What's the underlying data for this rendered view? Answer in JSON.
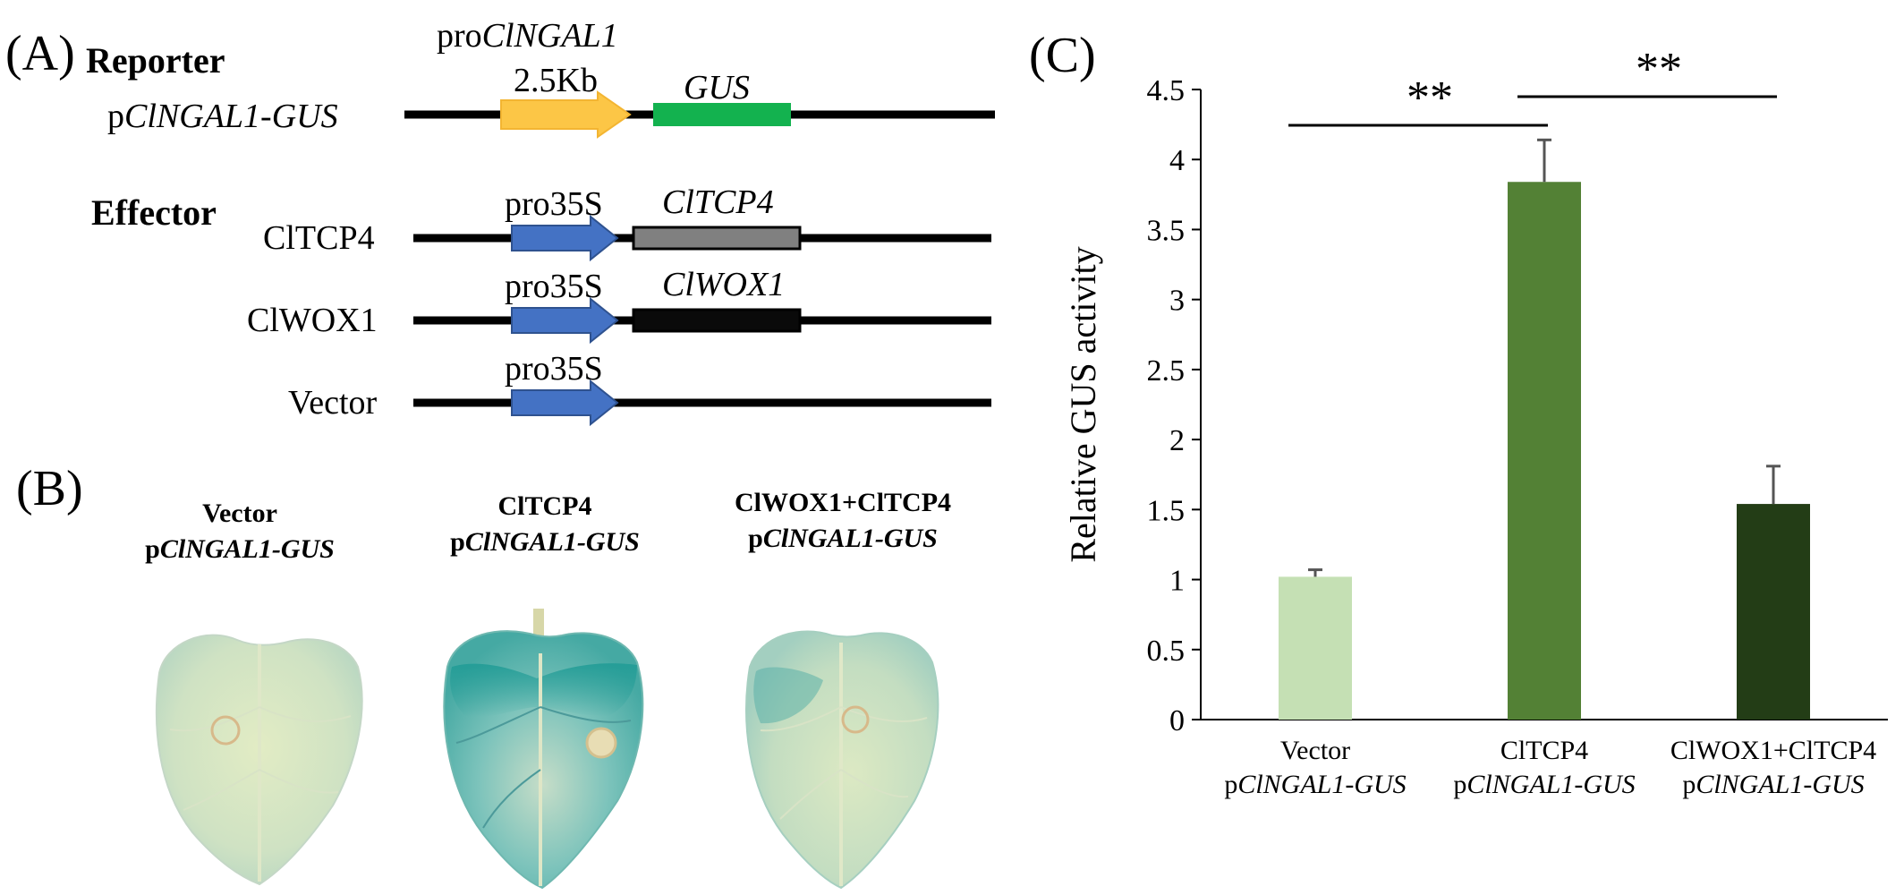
{
  "panel_a": {
    "letter": "(A)",
    "reporter_heading": "Reporter",
    "promoter_label_prefix": "pro",
    "promoter_label_gene": "ClNGAL1",
    "promoter_size": "2.5Kb",
    "reporter_gene": "GUS",
    "reporter_construct_prefix": "p",
    "reporter_construct_name": "ClNGAL1-GUS",
    "effector_heading": "Effector",
    "effectors": [
      {
        "construct": "ClTCP4",
        "promoter": "pro35S",
        "gene": "ClTCP4",
        "gene_color": "#808080"
      },
      {
        "construct": "ClWOX1",
        "promoter": "pro35S",
        "gene": "ClWOX1",
        "gene_color": "#0a0a0a"
      },
      {
        "construct": "Vector",
        "promoter": "pro35S",
        "gene": "",
        "gene_color": ""
      }
    ],
    "colors": {
      "promoter_arrow": "#fcc646",
      "gus_box": "#13b24f",
      "pro35s_arrow": "#4472c4"
    }
  },
  "panel_b": {
    "letter": "(B)",
    "leaves": [
      {
        "line1": "Vector",
        "line2_prefix": "p",
        "line2_name": "ClNGAL1-GUS",
        "staining": "light"
      },
      {
        "line1": "ClTCP4",
        "line2_prefix": "p",
        "line2_name": "ClNGAL1-GUS",
        "staining": "strong"
      },
      {
        "line1": "ClWOX1+ClTCP4",
        "line2_prefix": "p",
        "line2_name": "ClNGAL1-GUS",
        "staining": "moderate"
      }
    ]
  },
  "panel_c": {
    "letter": "(C)",
    "significance": [
      "**",
      "**"
    ]
  },
  "chart_data": {
    "type": "bar",
    "title": "",
    "xlabel": "",
    "ylabel": "Relative GUS activity",
    "ylim": [
      0,
      4.5
    ],
    "yticks": [
      "0",
      "0.5",
      "1",
      "1.5",
      "2",
      "2.5",
      "3",
      "3.5",
      "4",
      "4.5"
    ],
    "categories": [
      {
        "line1": "Vector",
        "line2_prefix": "p",
        "line2_name": "ClNGAL1-GUS"
      },
      {
        "line1": "ClTCP4",
        "line2_prefix": "p",
        "line2_name": "ClNGAL1-GUS"
      },
      {
        "line1": "ClWOX1+ClTCP4",
        "line2_prefix": "p",
        "line2_name": "ClNGAL1-GUS"
      }
    ],
    "values": [
      1.02,
      3.84,
      1.54
    ],
    "errors": [
      0.05,
      0.3,
      0.27
    ],
    "bar_colors": [
      "#c5e0b4",
      "#538135",
      "#233d16"
    ],
    "grid": false,
    "comparisons": [
      {
        "from": 0,
        "to": 1,
        "label": "**"
      },
      {
        "from": 1,
        "to": 2,
        "label": "**"
      }
    ]
  }
}
